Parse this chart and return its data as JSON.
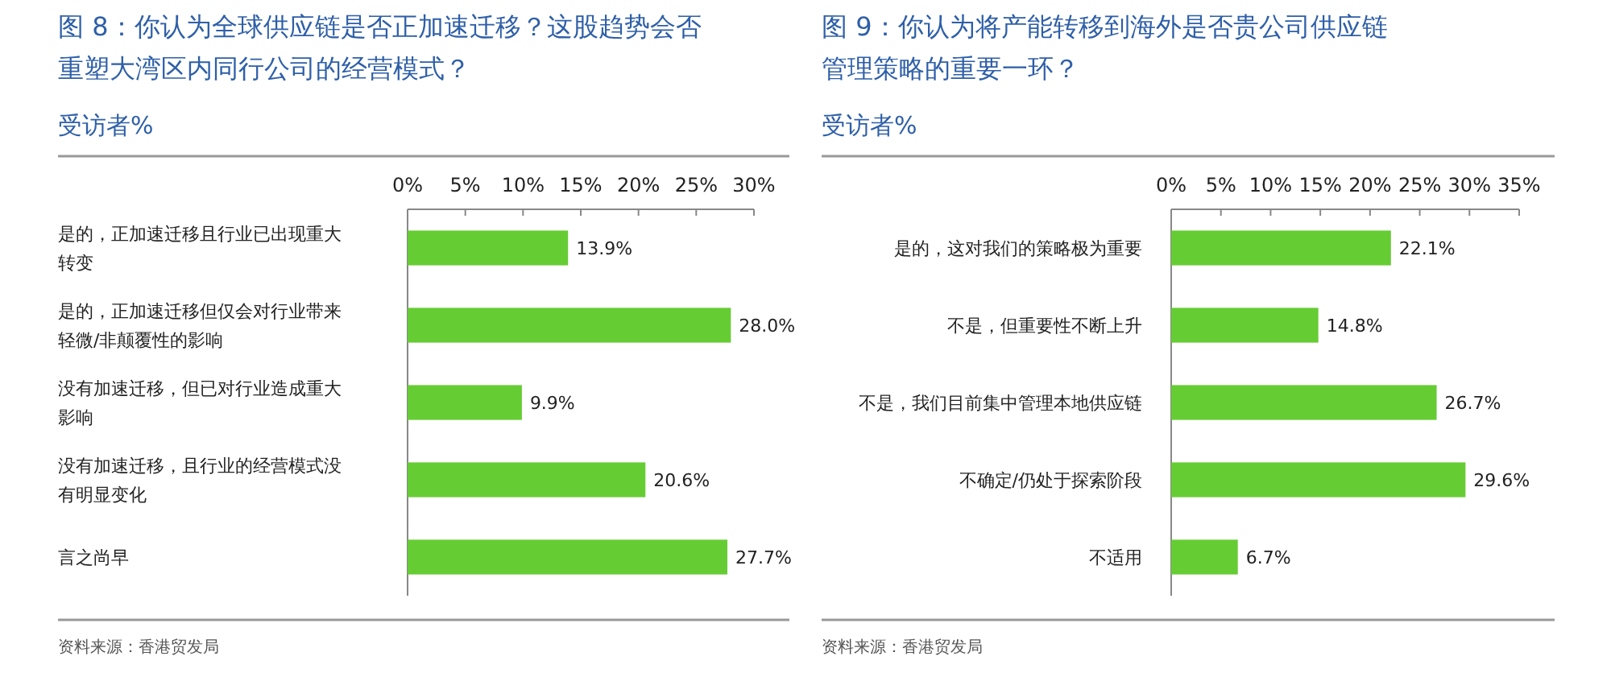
{
  "chart_data": [
    {
      "type": "bar",
      "orientation": "horizontal",
      "title": "图 8：你认为全球供应链是否正加速迁移？这股趋势会否重塑大湾区内同行公司的经营模式？",
      "subtitle": "受访者%",
      "categories": [
        "是的，正加速迁移且行业已出现重大转变",
        "是的，正加速迁移但仅会对行业带来轻微/非颠覆性的影响",
        "没有加速迁移，但已对行业造成重大影响",
        "没有加速迁移，且行业的经营模式没有明显变化",
        "言之尚早"
      ],
      "values": [
        13.9,
        28.0,
        9.9,
        20.6,
        27.7
      ],
      "value_labels": [
        "13.9%",
        "28.0%",
        "9.9%",
        "20.6%",
        "27.7%"
      ],
      "color": "#66cc33",
      "xlim": [
        0,
        30
      ],
      "xticks": [
        {
          "value": 0,
          "label": "0%"
        },
        {
          "value": 5,
          "label": "5%"
        },
        {
          "value": 10,
          "label": "10%"
        },
        {
          "value": 15,
          "label": "15%"
        },
        {
          "value": 20,
          "label": "20%"
        },
        {
          "value": 25,
          "label": "25%"
        },
        {
          "value": 30,
          "label": "30%"
        }
      ],
      "annotations": [
        "资料来源：香港贸发局"
      ]
    },
    {
      "type": "bar",
      "orientation": "horizontal",
      "title": "图 9：你认为将产能转移到海外是否贵公司供应链管理策略的重要一环？",
      "subtitle": "受访者%",
      "categories": [
        "是的，这对我们的策略极为重要",
        "不是，但重要性不断上升",
        "不是，我们目前集中管理本地供应链",
        "不确定/仍处于探索阶段",
        "不适用"
      ],
      "values": [
        22.1,
        14.8,
        26.7,
        29.6,
        6.7
      ],
      "value_labels": [
        "22.1%",
        "14.8%",
        "26.7%",
        "29.6%",
        "6.7%"
      ],
      "color": "#66cc33",
      "xlim": [
        0,
        35
      ],
      "xticks": [
        {
          "value": 0,
          "label": "0%"
        },
        {
          "value": 5,
          "label": "5%"
        },
        {
          "value": 10,
          "label": "10%"
        },
        {
          "value": 15,
          "label": "15%"
        },
        {
          "value": 20,
          "label": "20%"
        },
        {
          "value": 25,
          "label": "25%"
        },
        {
          "value": 30,
          "label": "30%"
        },
        {
          "value": 35,
          "label": "35%"
        }
      ],
      "annotations": [
        "资料来源：香港贸发局"
      ]
    }
  ]
}
